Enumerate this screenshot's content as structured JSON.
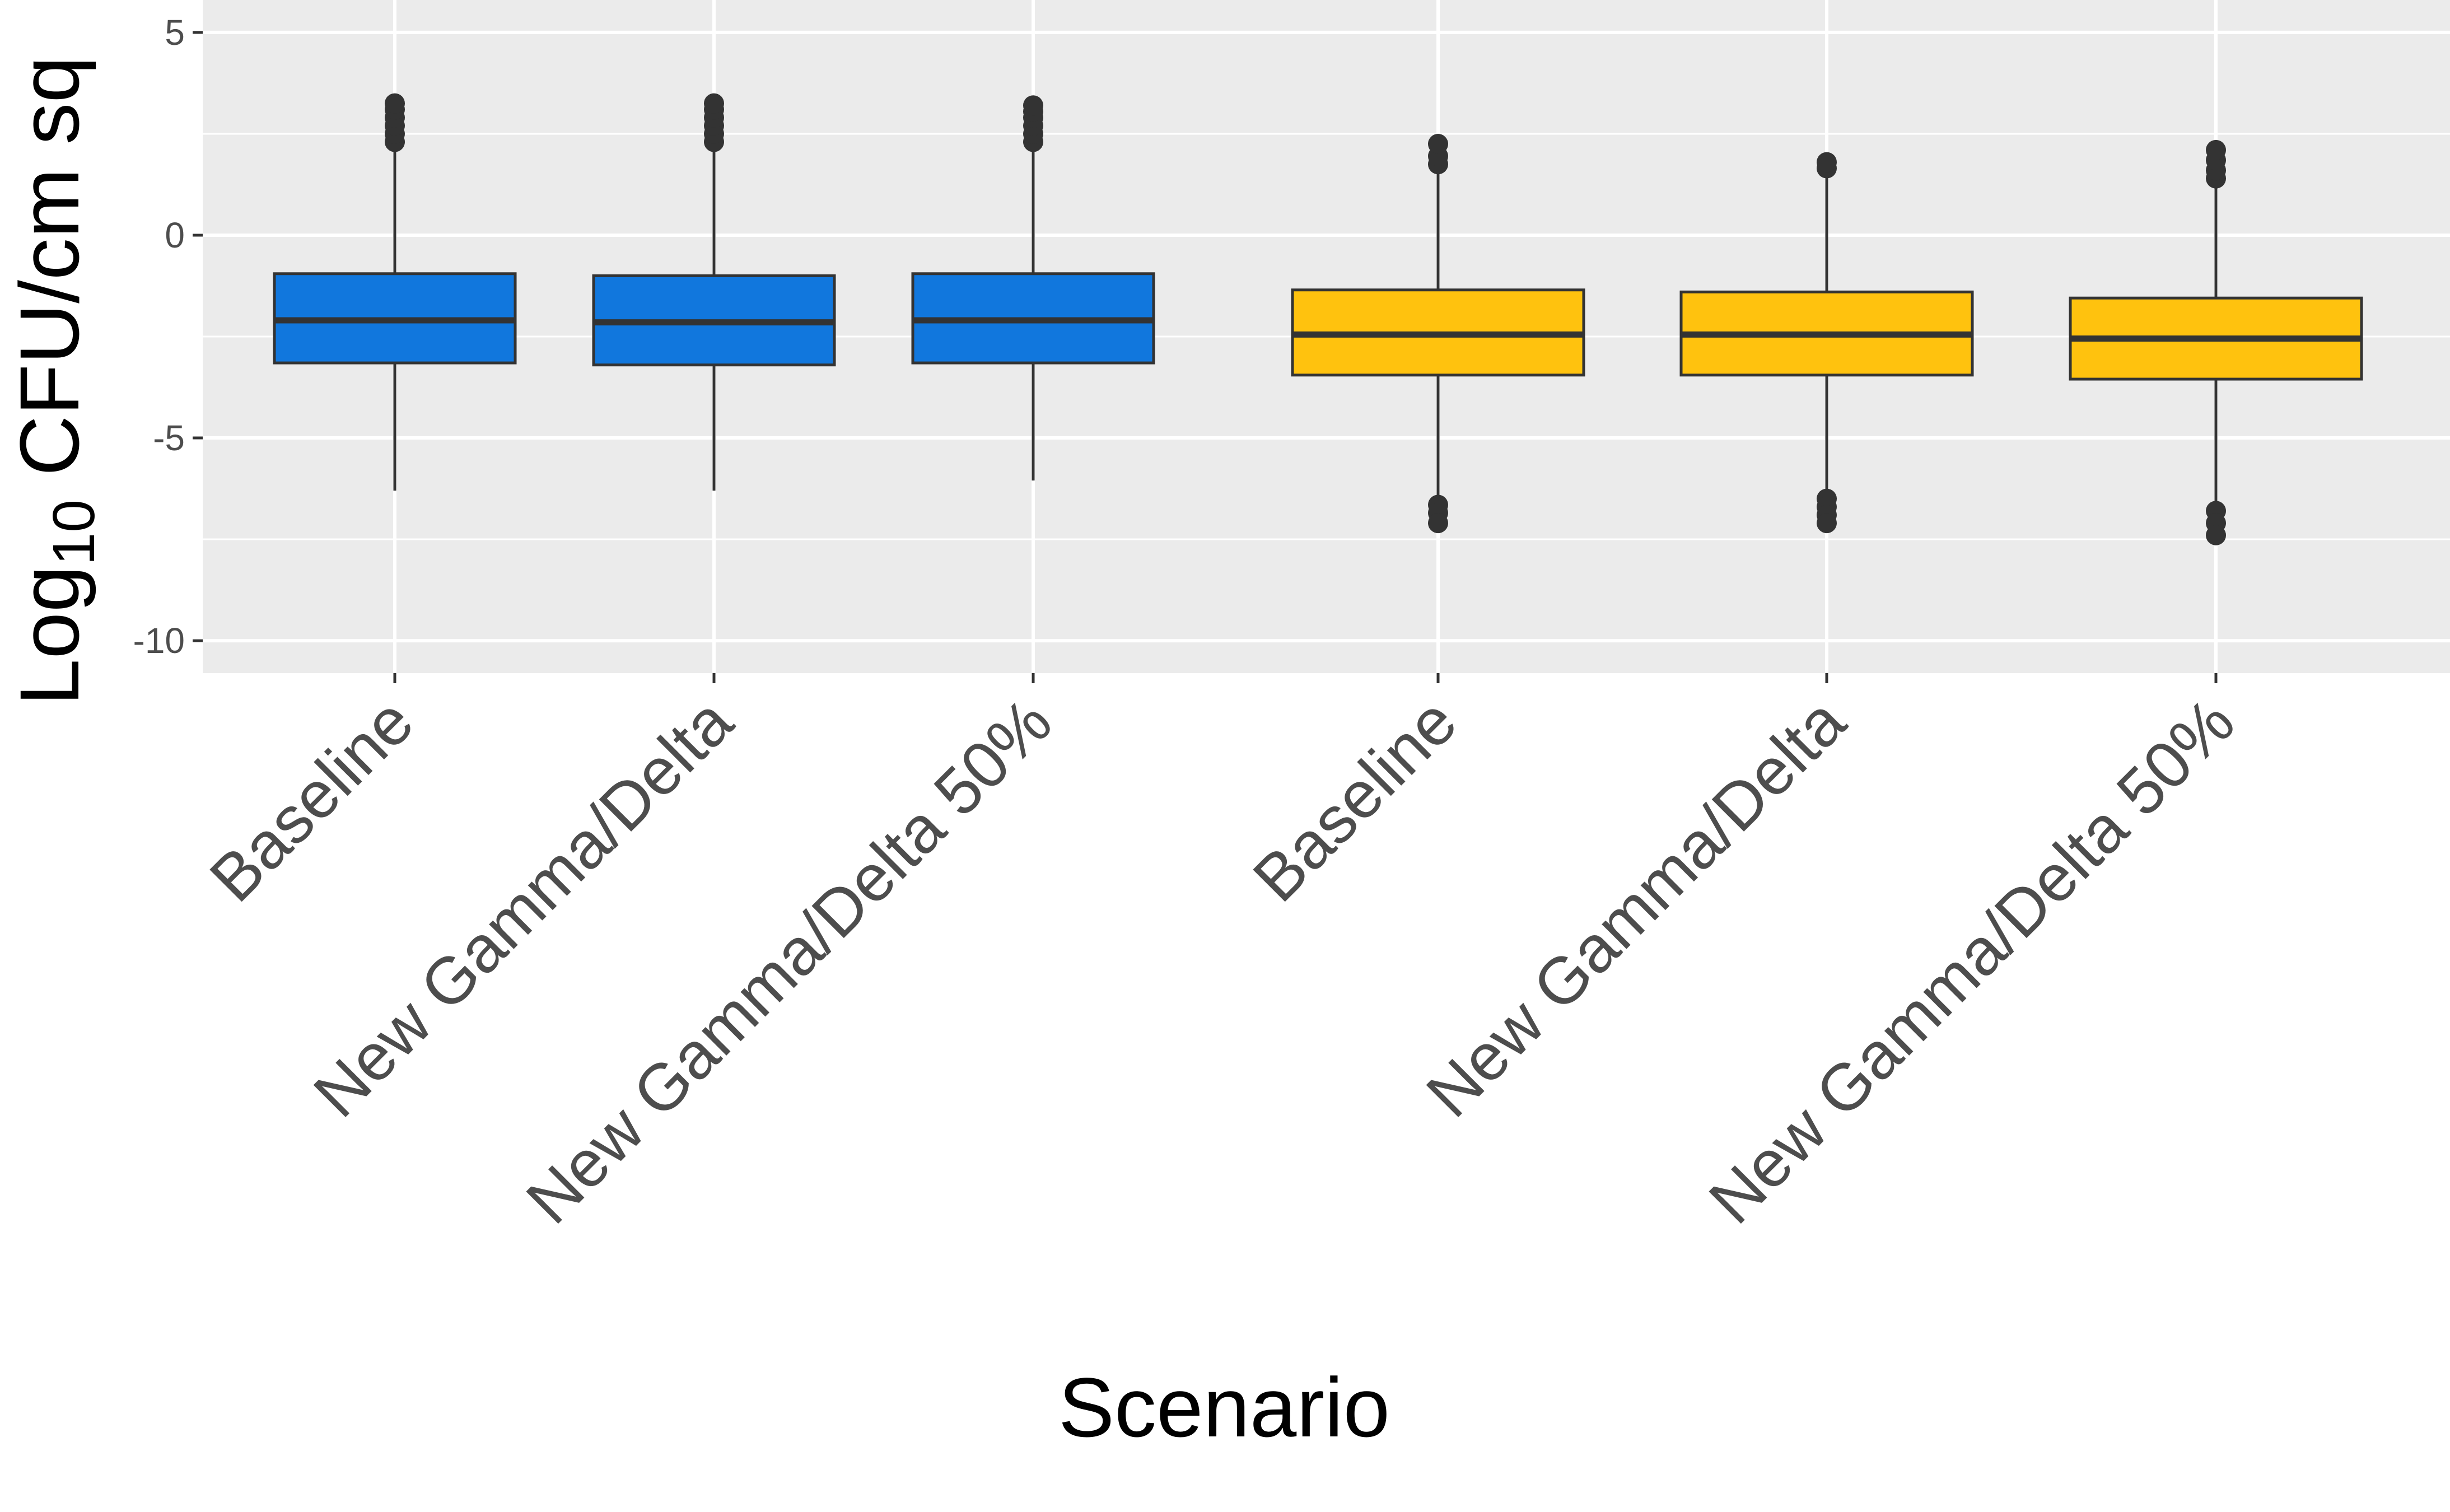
{
  "chart_data": {
    "type": "box",
    "title": "",
    "xlabel": "Scenario",
    "ylabel": {
      "main": "Log",
      "subscript": "10",
      "rest": " CFU/cm sq"
    },
    "ylim": [
      -10.8,
      5.8
    ],
    "yticks": [
      -10,
      -5,
      0,
      5
    ],
    "ytick_labels": [
      "-10",
      "-5",
      "0",
      "5"
    ],
    "grid": true,
    "legend": "none",
    "categories": [
      "Baseline",
      "New Gamma/Delta",
      "New Gamma/Delta 50%",
      "Baseline",
      "New Gamma/Delta",
      "New Gamma/Delta 50%"
    ],
    "boxes": [
      {
        "label": "Baseline",
        "color": "#1177dd",
        "whisker_low": -6.3,
        "q1": -3.15,
        "median": -2.1,
        "q3": -0.95,
        "whisker_high": 2.2,
        "outliers_low": [],
        "outliers_high": [
          2.3,
          2.5,
          2.7,
          2.9,
          3.1,
          3.25
        ]
      },
      {
        "label": "New Gamma/Delta",
        "color": "#1177dd",
        "whisker_low": -6.3,
        "q1": -3.2,
        "median": -2.15,
        "q3": -1.0,
        "whisker_high": 2.2,
        "outliers_low": [],
        "outliers_high": [
          2.3,
          2.5,
          2.7,
          2.9,
          3.1,
          3.25
        ]
      },
      {
        "label": "New Gamma/Delta 50%",
        "color": "#1177dd",
        "whisker_low": -6.05,
        "q1": -3.15,
        "median": -2.1,
        "q3": -0.95,
        "whisker_high": 2.2,
        "outliers_low": [],
        "outliers_high": [
          2.3,
          2.5,
          2.7,
          2.9,
          3.05,
          3.2
        ]
      },
      {
        "label": "Baseline",
        "color": "#ffc20e",
        "whisker_low": -6.5,
        "q1": -3.45,
        "median": -2.45,
        "q3": -1.35,
        "whisker_high": 1.6,
        "outliers_low": [
          -6.65,
          -6.85,
          -7.1
        ],
        "outliers_high": [
          1.75,
          1.95,
          2.25
        ]
      },
      {
        "label": "New Gamma/Delta",
        "color": "#ffc20e",
        "whisker_low": -6.3,
        "q1": -3.45,
        "median": -2.45,
        "q3": -1.4,
        "whisker_high": 1.55,
        "outliers_low": [
          -6.5,
          -6.7,
          -6.9,
          -7.1
        ],
        "outliers_high": [
          1.65,
          1.8
        ]
      },
      {
        "label": "New Gamma/Delta 50%",
        "color": "#ffc20e",
        "whisker_low": -6.6,
        "q1": -3.55,
        "median": -2.55,
        "q3": -1.55,
        "whisker_high": 1.3,
        "outliers_low": [
          -6.8,
          -7.1,
          -7.4
        ],
        "outliers_high": [
          1.4,
          1.6,
          1.85,
          2.1
        ]
      }
    ]
  }
}
